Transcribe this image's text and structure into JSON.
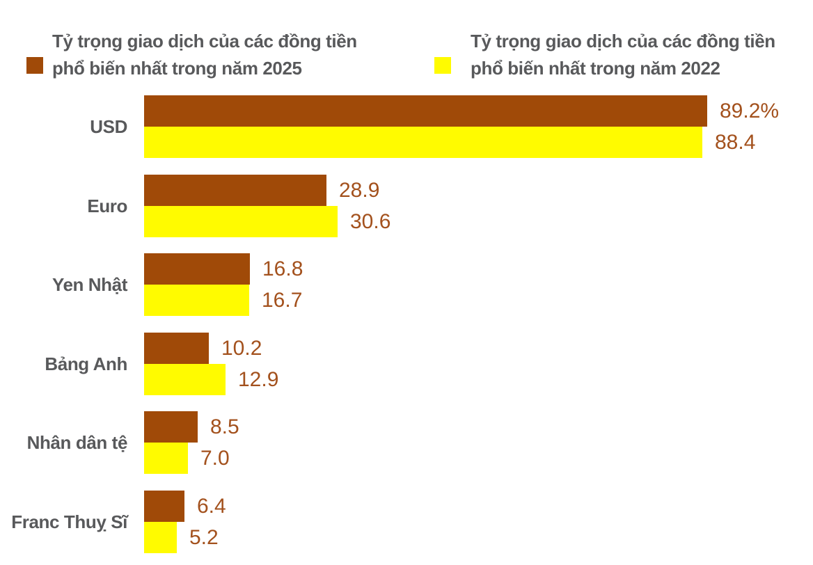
{
  "legend": {
    "items": [
      {
        "line1": "Tỷ trọng giao dịch của các đồng tiền",
        "line2": "phổ biến nhất trong năm 2025",
        "color": "#A04A08"
      },
      {
        "line1": "Tỷ trọng giao dịch của các đồng tiền",
        "line2": "phổ biến nhất trong năm 2022",
        "color": "#FFFB00"
      }
    ]
  },
  "chart_data": {
    "type": "bar",
    "orientation": "horizontal",
    "title": "",
    "categories": [
      "USD",
      "Euro",
      "Yen Nhật",
      "Bảng Anh",
      "Nhân dân tệ",
      "Franc Thuỵ Sĩ"
    ],
    "series": [
      {
        "name": "Tỷ trọng giao dịch của các đồng tiền phổ biến nhất trong năm 2025",
        "year": "2025",
        "color": "#A04A08",
        "values": [
          89.2,
          28.9,
          16.8,
          10.2,
          8.5,
          6.4
        ],
        "value_labels": [
          "89.2%",
          "28.9",
          "16.8",
          "10.2",
          "8.5",
          "6.4"
        ]
      },
      {
        "name": "Tỷ trọng giao dịch của các đồng tiền phổ biến nhất trong năm 2022",
        "year": "2022",
        "color": "#FFFB00",
        "values": [
          88.4,
          30.6,
          16.7,
          12.9,
          7.0,
          5.2
        ],
        "value_labels": [
          "88.4",
          "30.6",
          "16.7",
          "12.9",
          "7.0",
          "5.2"
        ]
      }
    ],
    "unit": "%",
    "xlim": [
      0,
      100
    ],
    "grid": false,
    "legend_position": "top",
    "value_label_color": "#A3511D",
    "category_label_color": "#58595B"
  }
}
